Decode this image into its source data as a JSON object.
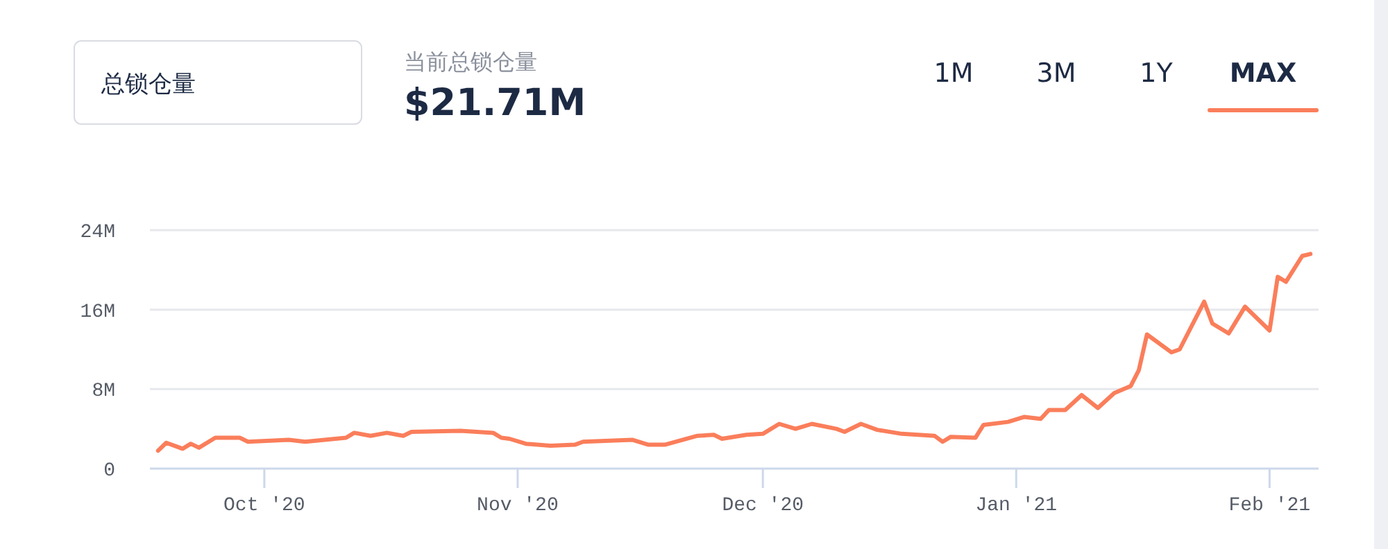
{
  "chart_data": {
    "type": "line",
    "title": "总锁仓量",
    "subtitle": "当前总锁仓量",
    "annotations": [
      "$21.71M",
      "1M",
      "3M",
      "1Y",
      "MAX"
    ],
    "x": [
      "2020-09-18",
      "2020-09-19",
      "2020-09-21",
      "2020-09-22",
      "2020-09-23",
      "2020-09-25",
      "2020-09-28",
      "2020-09-29",
      "2020-10-04",
      "2020-10-06",
      "2020-10-11",
      "2020-10-12",
      "2020-10-14",
      "2020-10-16",
      "2020-10-18",
      "2020-10-19",
      "2020-10-25",
      "2020-10-29",
      "2020-10-30",
      "2020-10-31",
      "2020-11-02",
      "2020-11-05",
      "2020-11-08",
      "2020-11-09",
      "2020-11-15",
      "2020-11-17",
      "2020-11-19",
      "2020-11-23",
      "2020-11-25",
      "2020-11-26",
      "2020-11-29",
      "2020-12-01",
      "2020-12-03",
      "2020-12-05",
      "2020-12-07",
      "2020-12-10",
      "2020-12-11",
      "2020-12-13",
      "2020-12-15",
      "2020-12-18",
      "2020-12-22",
      "2020-12-23",
      "2020-12-24",
      "2020-12-27",
      "2020-12-28",
      "2020-12-31",
      "2021-01-02",
      "2021-01-04",
      "2021-01-05",
      "2021-01-07",
      "2021-01-09",
      "2021-01-11",
      "2021-01-13",
      "2021-01-15",
      "2021-01-16",
      "2021-01-17",
      "2021-01-20",
      "2021-01-21",
      "2021-01-24",
      "2021-01-25",
      "2021-01-27",
      "2021-01-29",
      "2021-02-01",
      "2021-02-02",
      "2021-02-03",
      "2021-02-05",
      "2021-02-06"
    ],
    "series": [
      {
        "color": "#fa7e5b",
        "values": [
          1.8,
          2.6,
          2.0,
          2.5,
          2.1,
          3.1,
          3.1,
          2.7,
          2.9,
          2.7,
          3.1,
          3.6,
          3.3,
          3.6,
          3.3,
          3.7,
          3.8,
          3.6,
          3.1,
          3.0,
          2.5,
          2.3,
          2.4,
          2.7,
          2.9,
          2.4,
          2.4,
          3.3,
          3.4,
          3.0,
          3.4,
          3.5,
          4.5,
          4.0,
          4.5,
          4.0,
          3.7,
          4.5,
          3.9,
          3.5,
          3.3,
          2.7,
          3.2,
          3.1,
          4.4,
          4.7,
          5.2,
          5.0,
          5.9,
          5.9,
          7.4,
          6.1,
          7.6,
          8.3,
          9.9,
          13.5,
          11.7,
          12.0,
          16.8,
          14.6,
          13.6,
          16.3,
          13.9,
          19.3,
          18.8,
          21.4,
          21.6
        ]
      }
    ],
    "xlim": [
      "2020-09-17",
      "2021-02-07"
    ],
    "ylim": [
      0,
      24
    ],
    "yticks": [
      0,
      {
        "value": 8,
        "label": "8M"
      },
      {
        "value": 16,
        "label": "16M"
      },
      {
        "value": 24,
        "label": "24M"
      }
    ],
    "xticks": [
      {
        "value": "2020-10-01",
        "label": "Oct '20"
      },
      {
        "value": "2020-11-01",
        "label": "Nov '20"
      },
      {
        "value": "2020-12-01",
        "label": "Dec '20"
      },
      {
        "value": "2021-01-01",
        "label": "Jan '21"
      },
      {
        "value": "2021-02-01",
        "label": "Feb '21"
      }
    ],
    "grid": "y",
    "marker": "none",
    "line_style": "solid"
  }
}
